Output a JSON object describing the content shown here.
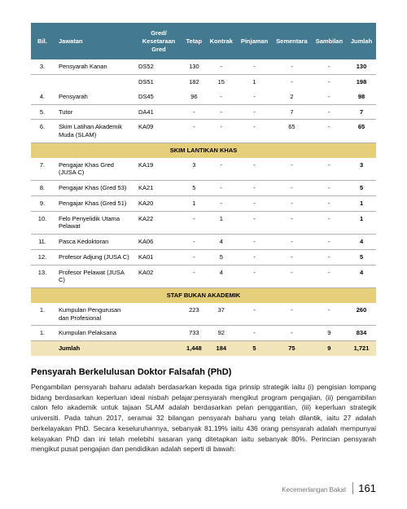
{
  "table": {
    "header_bg": "#447a8f",
    "section_bg": "#e6cf7a",
    "total_bg": "#f0e4b8",
    "columns": [
      "Bil.",
      "Jawatan",
      "Gred/\nKesetaraan\nGred",
      "Tetap",
      "Kontrak",
      "Pinjaman",
      "Sementara",
      "Sambilan",
      "Jumlah"
    ],
    "body": [
      {
        "type": "row",
        "cells": [
          "3.",
          "Pensyarah Kanan",
          "DS52",
          "130",
          "-",
          "-",
          "-",
          "-",
          "130"
        ]
      },
      {
        "type": "row-nb",
        "cells": [
          "",
          "",
          "DS51",
          "182",
          "15",
          "1",
          "-",
          "-",
          "198"
        ]
      },
      {
        "type": "row",
        "cells": [
          "4.",
          "Pensyarah",
          "DS45",
          "96",
          "-",
          "-",
          "2",
          "-",
          "98"
        ]
      },
      {
        "type": "row",
        "cells": [
          "5.",
          "Tutor",
          "DA41",
          "-",
          "-",
          "-",
          "7",
          "-",
          "7"
        ]
      },
      {
        "type": "row",
        "cells": [
          "6.",
          "Skim Latihan Akademik Muda (SLAM)",
          "KA09",
          "-",
          "-",
          "-",
          "65",
          "-",
          "65"
        ]
      },
      {
        "type": "section",
        "label": "SKIM LANTIKAN KHAS"
      },
      {
        "type": "row",
        "cells": [
          "7.",
          "Pengajar Khas Gred (JUSA C)",
          "KA19",
          "3",
          "-",
          "-",
          "-",
          "-",
          "3"
        ]
      },
      {
        "type": "row",
        "cells": [
          "8.",
          "Pengajar Khas (Gred 53)",
          "KA21",
          "5",
          "-",
          "-",
          "-",
          "-",
          "5"
        ]
      },
      {
        "type": "row",
        "cells": [
          "9.",
          "Pengajar Khas (Gred 51)",
          "KA20",
          "1",
          "-",
          "-",
          "-",
          "-",
          "1"
        ]
      },
      {
        "type": "row",
        "cells": [
          "10.",
          "Felo Penyelidik Utama Pelawat",
          "KA22",
          "-",
          "1",
          "-",
          "-",
          "-",
          "1"
        ]
      },
      {
        "type": "row",
        "cells": [
          "11.",
          "Pasca Kedoktoran",
          "KA06",
          "-",
          "4",
          "-",
          "-",
          "-",
          "4"
        ]
      },
      {
        "type": "row",
        "cells": [
          "12.",
          "Profesor Adjung (JUSA C)",
          "KA01",
          "-",
          "5",
          "-",
          "-",
          "-",
          "5"
        ]
      },
      {
        "type": "row",
        "cells": [
          "13.",
          "Profesor Pelawat (JUSA C)",
          "KA02",
          "-",
          "4",
          "-",
          "-",
          "-",
          "4"
        ]
      },
      {
        "type": "section",
        "label": "STAF BUKAN AKADEMIK"
      },
      {
        "type": "row",
        "cells": [
          "1.",
          "Kumpulan Pengurusan dan Profesional",
          "",
          "223",
          "37",
          "-",
          "-",
          "-",
          "260"
        ]
      },
      {
        "type": "row",
        "cells": [
          "1.",
          "Kumpulan Pelaksana",
          "",
          "733",
          "92",
          "-",
          "-",
          "9",
          "834"
        ]
      },
      {
        "type": "total",
        "cells": [
          "",
          "Jumlah",
          "",
          "1,448",
          "184",
          "5",
          "75",
          "9",
          "1,721"
        ]
      }
    ]
  },
  "section_title": "Pensyarah Berkelulusan Doktor Falsafah (PhD)",
  "body_text": "Pengambilan pensyarah baharu adalah berdasarkan kepada tiga prinsip strategik iaitu (i) pengisian lompang bidang berdasarkan keperluan ideal nisbah pelajar:pensyarah mengikut program pengajian, (ii) pengambilan calon felo akademik untuk tajaan SLAM adalah berdasarkan pelan penggantian, (iii) keperluan strategik universiti. Pada tahun 2017, seramai 32 bilangan pensyarah baharu yang telah dilantik, iaitu 27 adalah berkelayakan PhD. Secara keseluruhannya, sebanyak 81.19% iaitu 436 orang pensyarah adalah mempunyai kelayakan PhD dan ini telah melebihi sasaran yang ditetapkan iaitu sebanyak 80%. Perincian pensyarah mengikut pusat pengajian dan pendidikan adalah seperti di bawah:",
  "footer": {
    "label": "Kecemerlangan Bakat",
    "page": "161"
  }
}
